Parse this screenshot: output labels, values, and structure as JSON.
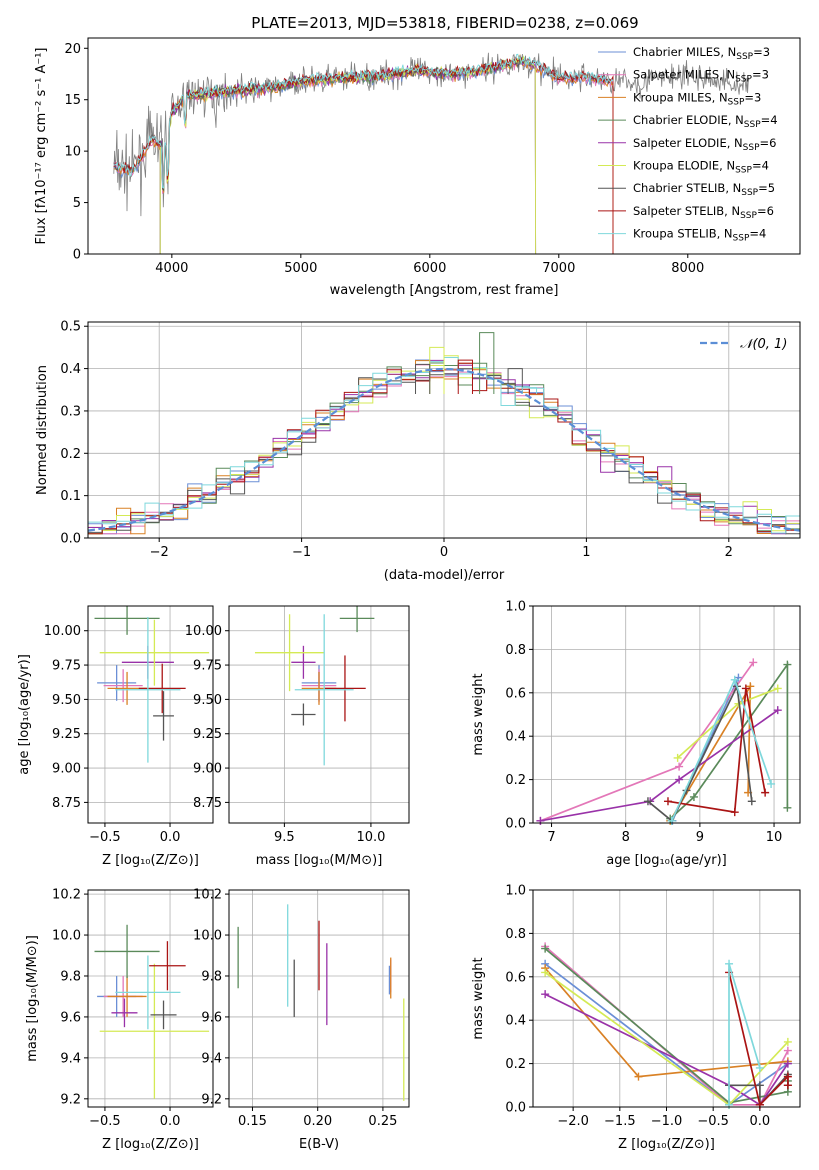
{
  "title": "PLATE=2013, MJD=53818, FIBERID=0238, z=0.069",
  "colors": {
    "Chabrier MILES": "#6b8fd6",
    "Salpeter MILES": "#e377b8",
    "Kroupa MILES": "#d98125",
    "Chabrier ELODIE": "#5a8a5a",
    "Salpeter ELODIE": "#9932a8",
    "Kroupa ELODIE": "#d4ea55",
    "Chabrier STELIB": "#555555",
    "Salpeter STELIB": "#aa1414",
    "Kroupa STELIB": "#7fd8dc",
    "data": "#808080",
    "normal": "#5b8ed6"
  },
  "chart_data": [
    {
      "id": "spectrum",
      "type": "line",
      "title": "PLATE=2013, MJD=53818, FIBERID=0238, z=0.069",
      "xlabel": "wavelength [Angstrom, rest frame]",
      "ylabel": "Flux [fλ10⁻¹⁷ erg cm⁻² s⁻¹ A⁻¹]",
      "xlim": [
        3350,
        8870
      ],
      "ylim": [
        0,
        21
      ],
      "xticks": [
        4000,
        5000,
        6000,
        7000,
        8000
      ],
      "yticks": [
        0,
        5,
        10,
        15,
        20
      ],
      "grid": false,
      "legend": "upper right",
      "legend_entries": [
        {
          "main": "Chabrier MILES, N",
          "sub": "SSP",
          "tail": "=3"
        },
        {
          "main": "Salpeter MILES, N",
          "sub": "SSP",
          "tail": "=3"
        },
        {
          "main": "Kroupa MILES, N",
          "sub": "SSP",
          "tail": "=3"
        },
        {
          "main": "Chabrier ELODIE, N",
          "sub": "SSP",
          "tail": "=4"
        },
        {
          "main": "Salpeter ELODIE, N",
          "sub": "SSP",
          "tail": "=6"
        },
        {
          "main": "Kroupa ELODIE, N",
          "sub": "SSP",
          "tail": "=4"
        },
        {
          "main": "Chabrier STELIB, N",
          "sub": "SSP",
          "tail": "=5"
        },
        {
          "main": "Salpeter STELIB, N",
          "sub": "SSP",
          "tail": "=6"
        },
        {
          "main": "Kroupa STELIB, N",
          "sub": "SSP",
          "tail": "=4"
        }
      ],
      "continuum": {
        "x": [
          3550,
          3700,
          3850,
          3950,
          4000,
          4100,
          4300,
          4500,
          4800,
          5000,
          5300,
          5600,
          5900,
          6200,
          6500,
          6700,
          6800,
          7000,
          7200,
          7400,
          7600,
          7800,
          8000,
          8200,
          8400,
          8480
        ],
        "y": [
          8.5,
          8.0,
          11.2,
          10.2,
          13.8,
          15.4,
          15.6,
          15.9,
          16.2,
          16.8,
          17.1,
          17.3,
          17.8,
          17.5,
          18.1,
          18.8,
          18.4,
          17.1,
          17.2,
          16.8,
          16.6,
          17.2,
          17.3,
          16.9,
          16.5,
          16.4
        ]
      },
      "data_range": [
        3550,
        8480
      ],
      "model_range": [
        3550,
        7420
      ],
      "elodie_range": [
        3910,
        6820
      ]
    },
    {
      "id": "residuals",
      "type": "step",
      "xlabel": "(data-model)/error",
      "ylabel": "Normed distribution",
      "xlim": [
        -2.5,
        2.5
      ],
      "ylim": [
        0,
        0.51
      ],
      "xticks": [
        -2,
        -1,
        0,
        1,
        2
      ],
      "yticks": [
        0.0,
        0.1,
        0.2,
        0.3,
        0.4,
        0.5
      ],
      "grid": true,
      "legend": "upper right",
      "reference": {
        "label": "𝒩(0, 1)",
        "mean": 0,
        "sigma": 1
      },
      "bin_width": 0.1,
      "highlight_values": [
        0.485,
        0.45,
        0.42,
        0.41,
        0.4,
        0.355
      ]
    },
    {
      "id": "age_vs_Z",
      "type": "errorbar",
      "xlabel": "Z [log₁₀(Z/Z⊙)]",
      "ylabel": "age  [log₁₀(age/yr)]",
      "xlim": [
        -0.63,
        0.33
      ],
      "ylim": [
        8.6,
        10.18
      ],
      "xticks": [
        -0.5,
        0.0
      ],
      "yticks": [
        8.75,
        9.0,
        9.25,
        9.5,
        9.75,
        10.0
      ],
      "points": [
        {
          "model": "Chabrier MILES",
          "x": -0.41,
          "xerr": 0.15,
          "y": 9.62,
          "yerr": 0.13
        },
        {
          "model": "Salpeter MILES",
          "x": -0.36,
          "xerr": 0.15,
          "y": 9.6,
          "yerr": 0.12
        },
        {
          "model": "Kroupa MILES",
          "x": -0.33,
          "xerr": 0.15,
          "y": 9.58,
          "yerr": 0.12
        },
        {
          "model": "Chabrier ELODIE",
          "x": -0.33,
          "xerr": 0.25,
          "y": 10.09,
          "yerr": 0.12
        },
        {
          "model": "Salpeter ELODIE",
          "x": -0.17,
          "xerr": 0.2,
          "y": 9.77,
          "yerr": 0.12
        },
        {
          "model": "Kroupa ELODIE",
          "x": -0.12,
          "xerr": 0.42,
          "y": 9.84,
          "yerr": 0.24
        },
        {
          "model": "Chabrier STELIB",
          "x": -0.05,
          "xerr": 0.08,
          "y": 9.38,
          "yerr": 0.18
        },
        {
          "model": "Salpeter STELIB",
          "x": -0.06,
          "xerr": 0.18,
          "y": 9.58,
          "yerr": 0.18
        },
        {
          "model": "Kroupa STELIB",
          "x": -0.17,
          "xerr": 0.25,
          "y": 9.57,
          "yerr": 0.53
        }
      ]
    },
    {
      "id": "age_vs_mass",
      "type": "errorbar",
      "xlabel": "mass [log₁₀(M/M⊙)]",
      "ylabel": "",
      "xlim": [
        9.18,
        10.22
      ],
      "ylim": [
        8.6,
        10.18
      ],
      "xticks": [
        9.5,
        10.0
      ],
      "yticks": [
        8.75,
        9.0,
        9.25,
        9.5,
        9.75,
        10.0
      ],
      "points": [
        {
          "model": "Chabrier MILES",
          "x": 9.7,
          "xerr": 0.1,
          "y": 9.62,
          "yerr": 0.13
        },
        {
          "model": "Salpeter MILES",
          "x": 9.7,
          "xerr": 0.1,
          "y": 9.6,
          "yerr": 0.12
        },
        {
          "model": "Kroupa MILES",
          "x": 9.7,
          "xerr": 0.1,
          "y": 9.58,
          "yerr": 0.12
        },
        {
          "model": "Chabrier ELODIE",
          "x": 9.92,
          "xerr": 0.1,
          "y": 10.09,
          "yerr": 0.1
        },
        {
          "model": "Salpeter ELODIE",
          "x": 9.61,
          "xerr": 0.07,
          "y": 9.77,
          "yerr": 0.12
        },
        {
          "model": "Kroupa ELODIE",
          "x": 9.53,
          "xerr": 0.2,
          "y": 9.84,
          "yerr": 0.28
        },
        {
          "model": "Chabrier STELIB",
          "x": 9.61,
          "xerr": 0.07,
          "y": 9.39,
          "yerr": 0.08
        },
        {
          "model": "Salpeter STELIB",
          "x": 9.85,
          "xerr": 0.12,
          "y": 9.58,
          "yerr": 0.24
        },
        {
          "model": "Kroupa STELIB",
          "x": 9.73,
          "xerr": 0.17,
          "y": 9.57,
          "yerr": 0.55
        }
      ]
    },
    {
      "id": "mass_weight_vs_age",
      "type": "line",
      "xlabel": "age  [log₁₀(age/yr)]",
      "ylabel": "mass weight",
      "xlim": [
        6.75,
        10.35
      ],
      "ylim": [
        0,
        1.0
      ],
      "xticks": [
        7,
        8,
        9,
        10
      ],
      "yticks": [
        0.0,
        0.2,
        0.4,
        0.6,
        0.8,
        1.0
      ],
      "grid": true,
      "series": [
        {
          "model": "Chabrier MILES",
          "x": [
            8.63,
            9.52
          ],
          "y": [
            0.01,
            0.67
          ]
        },
        {
          "model": "Salpeter MILES",
          "x": [
            6.85,
            8.72,
            9.72
          ],
          "y": [
            0.01,
            0.26,
            0.74
          ]
        },
        {
          "model": "Kroupa MILES",
          "x": [
            8.6,
            9.68,
            9.65
          ],
          "y": [
            0.01,
            0.63,
            0.14
          ]
        },
        {
          "model": "Chabrier ELODIE",
          "x": [
            8.6,
            8.92,
            10.18,
            10.18
          ],
          "y": [
            0.02,
            0.12,
            0.73,
            0.07
          ]
        },
        {
          "model": "Salpeter ELODIE",
          "x": [
            6.85,
            8.33,
            8.72,
            10.05
          ],
          "y": [
            0.01,
            0.1,
            0.2,
            0.52
          ]
        },
        {
          "model": "Kroupa ELODIE",
          "x": [
            8.7,
            9.52,
            10.05
          ],
          "y": [
            0.3,
            0.55,
            0.62
          ]
        },
        {
          "model": "Chabrier STELIB",
          "x": [
            8.3,
            8.62,
            8.82,
            9.5,
            9.7
          ],
          "y": [
            0.1,
            0.01,
            0.15,
            0.63,
            0.1
          ]
        },
        {
          "model": "Salpeter STELIB",
          "x": [
            8.57,
            9.47,
            9.62,
            9.88
          ],
          "y": [
            0.1,
            0.05,
            0.62,
            0.14
          ]
        },
        {
          "model": "Kroupa STELIB",
          "x": [
            8.62,
            9.47,
            9.96
          ],
          "y": [
            0.01,
            0.66,
            0.18
          ]
        }
      ]
    },
    {
      "id": "mass_vs_Z",
      "type": "errorbar",
      "xlabel": "Z [log₁₀(Z/Z⊙)]",
      "ylabel": "mass [log₁₀(M/M⊙)]",
      "xlim": [
        -0.63,
        0.33
      ],
      "ylim": [
        9.16,
        10.22
      ],
      "xticks": [
        -0.5,
        0.0
      ],
      "yticks": [
        9.2,
        9.4,
        9.6,
        9.8,
        10.0,
        10.2
      ],
      "points": [
        {
          "model": "Chabrier MILES",
          "x": -0.41,
          "xerr": 0.15,
          "y": 9.7,
          "yerr": 0.1
        },
        {
          "model": "Salpeter MILES",
          "x": -0.36,
          "xerr": 0.15,
          "y": 9.7,
          "yerr": 0.1
        },
        {
          "model": "Kroupa MILES",
          "x": -0.33,
          "xerr": 0.15,
          "y": 9.7,
          "yerr": 0.1
        },
        {
          "model": "Chabrier ELODIE",
          "x": -0.33,
          "xerr": 0.25,
          "y": 9.92,
          "yerr": 0.13
        },
        {
          "model": "Salpeter ELODIE",
          "x": -0.35,
          "xerr": 0.1,
          "y": 9.62,
          "yerr": 0.07
        },
        {
          "model": "Kroupa ELODIE",
          "x": -0.12,
          "xerr": 0.42,
          "y": 9.53,
          "yerr": 0.33
        },
        {
          "model": "Chabrier STELIB",
          "x": -0.05,
          "xerr": 0.1,
          "y": 9.61,
          "yerr": 0.07
        },
        {
          "model": "Salpeter STELIB",
          "x": -0.02,
          "xerr": 0.14,
          "y": 9.85,
          "yerr": 0.12
        },
        {
          "model": "Kroupa STELIB",
          "x": -0.17,
          "xerr": 0.25,
          "y": 9.72,
          "yerr": 0.18
        }
      ]
    },
    {
      "id": "mass_vs_ebv",
      "type": "errorbar",
      "xlabel": "E(B-V)",
      "ylabel": "",
      "xlim": [
        0.132,
        0.27
      ],
      "ylim": [
        9.16,
        10.22
      ],
      "xticks": [
        0.15,
        0.2,
        0.25
      ],
      "yticks": [
        9.2,
        9.4,
        9.6,
        9.8,
        10.0,
        10.2
      ],
      "points": [
        {
          "model": "Chabrier MILES",
          "x": 0.255,
          "xerr": 0,
          "y": 9.78,
          "yerr": 0.07
        },
        {
          "model": "Salpeter MILES",
          "x": 0.256,
          "xerr": 0,
          "y": 9.8,
          "yerr": 0.08
        },
        {
          "model": "Kroupa MILES",
          "x": 0.256,
          "xerr": 0,
          "y": 9.79,
          "yerr": 0.1
        },
        {
          "model": "Chabrier ELODIE",
          "x": 0.139,
          "xerr": 0,
          "y": 9.89,
          "yerr": 0.15
        },
        {
          "model": "Salpeter ELODIE",
          "x": 0.207,
          "xerr": 0,
          "y": 9.76,
          "yerr": 0.2
        },
        {
          "model": "Kroupa ELODIE",
          "x": 0.266,
          "xerr": 0,
          "y": 9.44,
          "yerr": 0.25
        },
        {
          "model": "Chabrier STELIB",
          "x": 0.182,
          "xerr": 0,
          "y": 9.74,
          "yerr": 0.14
        },
        {
          "model": "Salpeter STELIB",
          "x": 0.201,
          "xerr": 0,
          "y": 9.9,
          "yerr": 0.17
        },
        {
          "model": "Kroupa STELIB",
          "x": 0.177,
          "xerr": 0,
          "y": 9.9,
          "yerr": 0.25
        }
      ]
    },
    {
      "id": "mass_weight_vs_Z",
      "type": "line",
      "xlabel": "Z [log₁₀(Z/Z⊙)]",
      "ylabel": "mass weight",
      "xlim": [
        -2.43,
        0.43
      ],
      "ylim": [
        0,
        1.0
      ],
      "xticks": [
        -2.0,
        -1.5,
        -1.0,
        -0.5,
        0.0
      ],
      "yticks": [
        0.0,
        0.2,
        0.4,
        0.6,
        0.8,
        1.0
      ],
      "grid": true,
      "series": [
        {
          "model": "Chabrier MILES",
          "x": [
            -2.3,
            -0.33,
            0.3
          ],
          "y": [
            0.66,
            0.01,
            0.2
          ]
        },
        {
          "model": "Salpeter MILES",
          "x": [
            -2.3,
            -0.33,
            0.0,
            0.3
          ],
          "y": [
            0.74,
            0.01,
            0.01,
            0.26
          ]
        },
        {
          "model": "Kroupa MILES",
          "x": [
            -2.3,
            -1.3,
            0.3
          ],
          "y": [
            0.64,
            0.14,
            0.21
          ]
        },
        {
          "model": "Chabrier ELODIE",
          "x": [
            -2.3,
            -0.33,
            0.3,
            0.3
          ],
          "y": [
            0.73,
            0.02,
            0.07,
            0.12
          ]
        },
        {
          "model": "Salpeter ELODIE",
          "x": [
            -2.3,
            -0.33,
            0.0,
            0.3
          ],
          "y": [
            0.52,
            0.1,
            0.01,
            0.2
          ]
        },
        {
          "model": "Kroupa ELODIE",
          "x": [
            -2.3,
            -0.33,
            0.3
          ],
          "y": [
            0.62,
            0.01,
            0.3
          ]
        },
        {
          "model": "Chabrier STELIB",
          "x": [
            -0.33,
            0.0,
            0.0,
            0.3,
            0.3
          ],
          "y": [
            0.1,
            0.1,
            0.01,
            0.15,
            0.1
          ]
        },
        {
          "model": "Salpeter STELIB",
          "x": [
            -0.33,
            0.0,
            0.3,
            0.3
          ],
          "y": [
            0.62,
            0.01,
            0.14,
            0.1
          ]
        },
        {
          "model": "Kroupa STELIB",
          "x": [
            -0.33,
            -0.33,
            0.0
          ],
          "y": [
            0.01,
            0.66,
            0.18
          ]
        }
      ]
    }
  ]
}
